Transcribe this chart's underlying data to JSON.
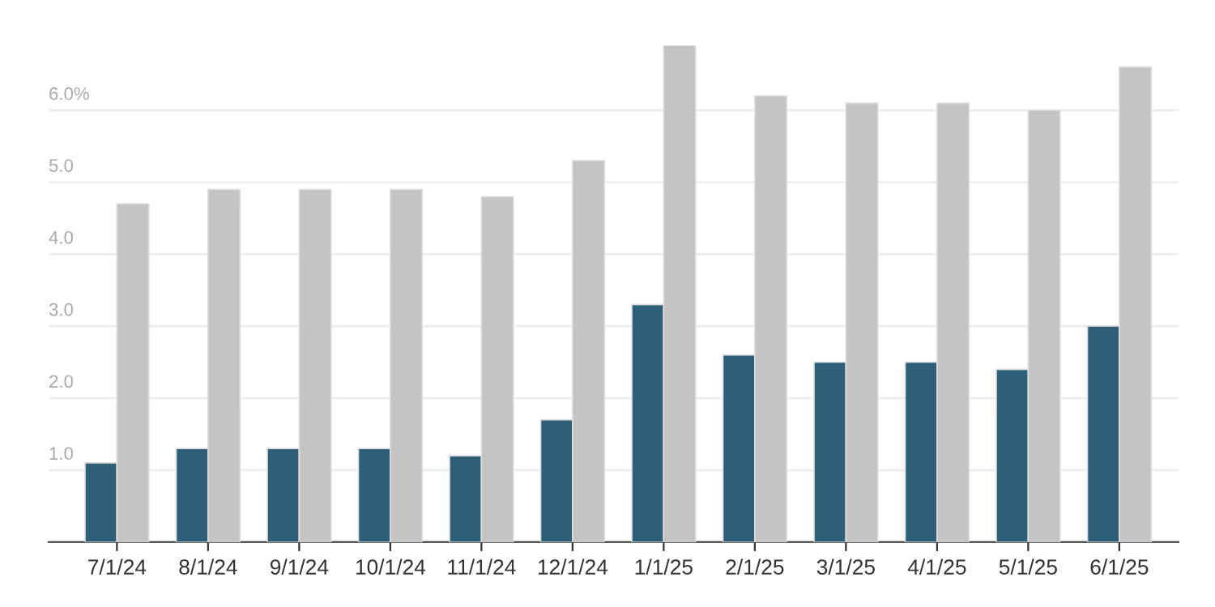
{
  "chart_data": {
    "type": "bar",
    "categories": [
      "7/1/24",
      "8/1/24",
      "9/1/24",
      "10/1/24",
      "11/1/24",
      "12/1/24",
      "1/1/25",
      "2/1/25",
      "3/1/25",
      "4/1/25",
      "5/1/25",
      "6/1/25"
    ],
    "series": [
      {
        "color": "#2e5f78",
        "values": [
          1.1,
          1.3,
          1.3,
          1.3,
          1.2,
          1.7,
          3.3,
          2.6,
          2.5,
          2.5,
          2.4,
          3.0
        ]
      },
      {
        "color": "#c4c4c4",
        "values": [
          4.7,
          4.9,
          4.9,
          4.9,
          4.8,
          5.3,
          6.9,
          6.2,
          6.1,
          6.1,
          6.0,
          6.6
        ]
      }
    ],
    "ylim": [
      0,
      6.9
    ],
    "yticks": [
      {
        "value": 0,
        "label": null
      },
      {
        "value": 1,
        "label": "1.0"
      },
      {
        "value": 2,
        "label": "2.0"
      },
      {
        "value": 3,
        "label": "3.0"
      },
      {
        "value": 4,
        "label": "4.0"
      },
      {
        "value": 5,
        "label": "5.0"
      },
      {
        "value": 6,
        "label": "6.0%"
      }
    ],
    "grid": "y",
    "legend": false
  }
}
